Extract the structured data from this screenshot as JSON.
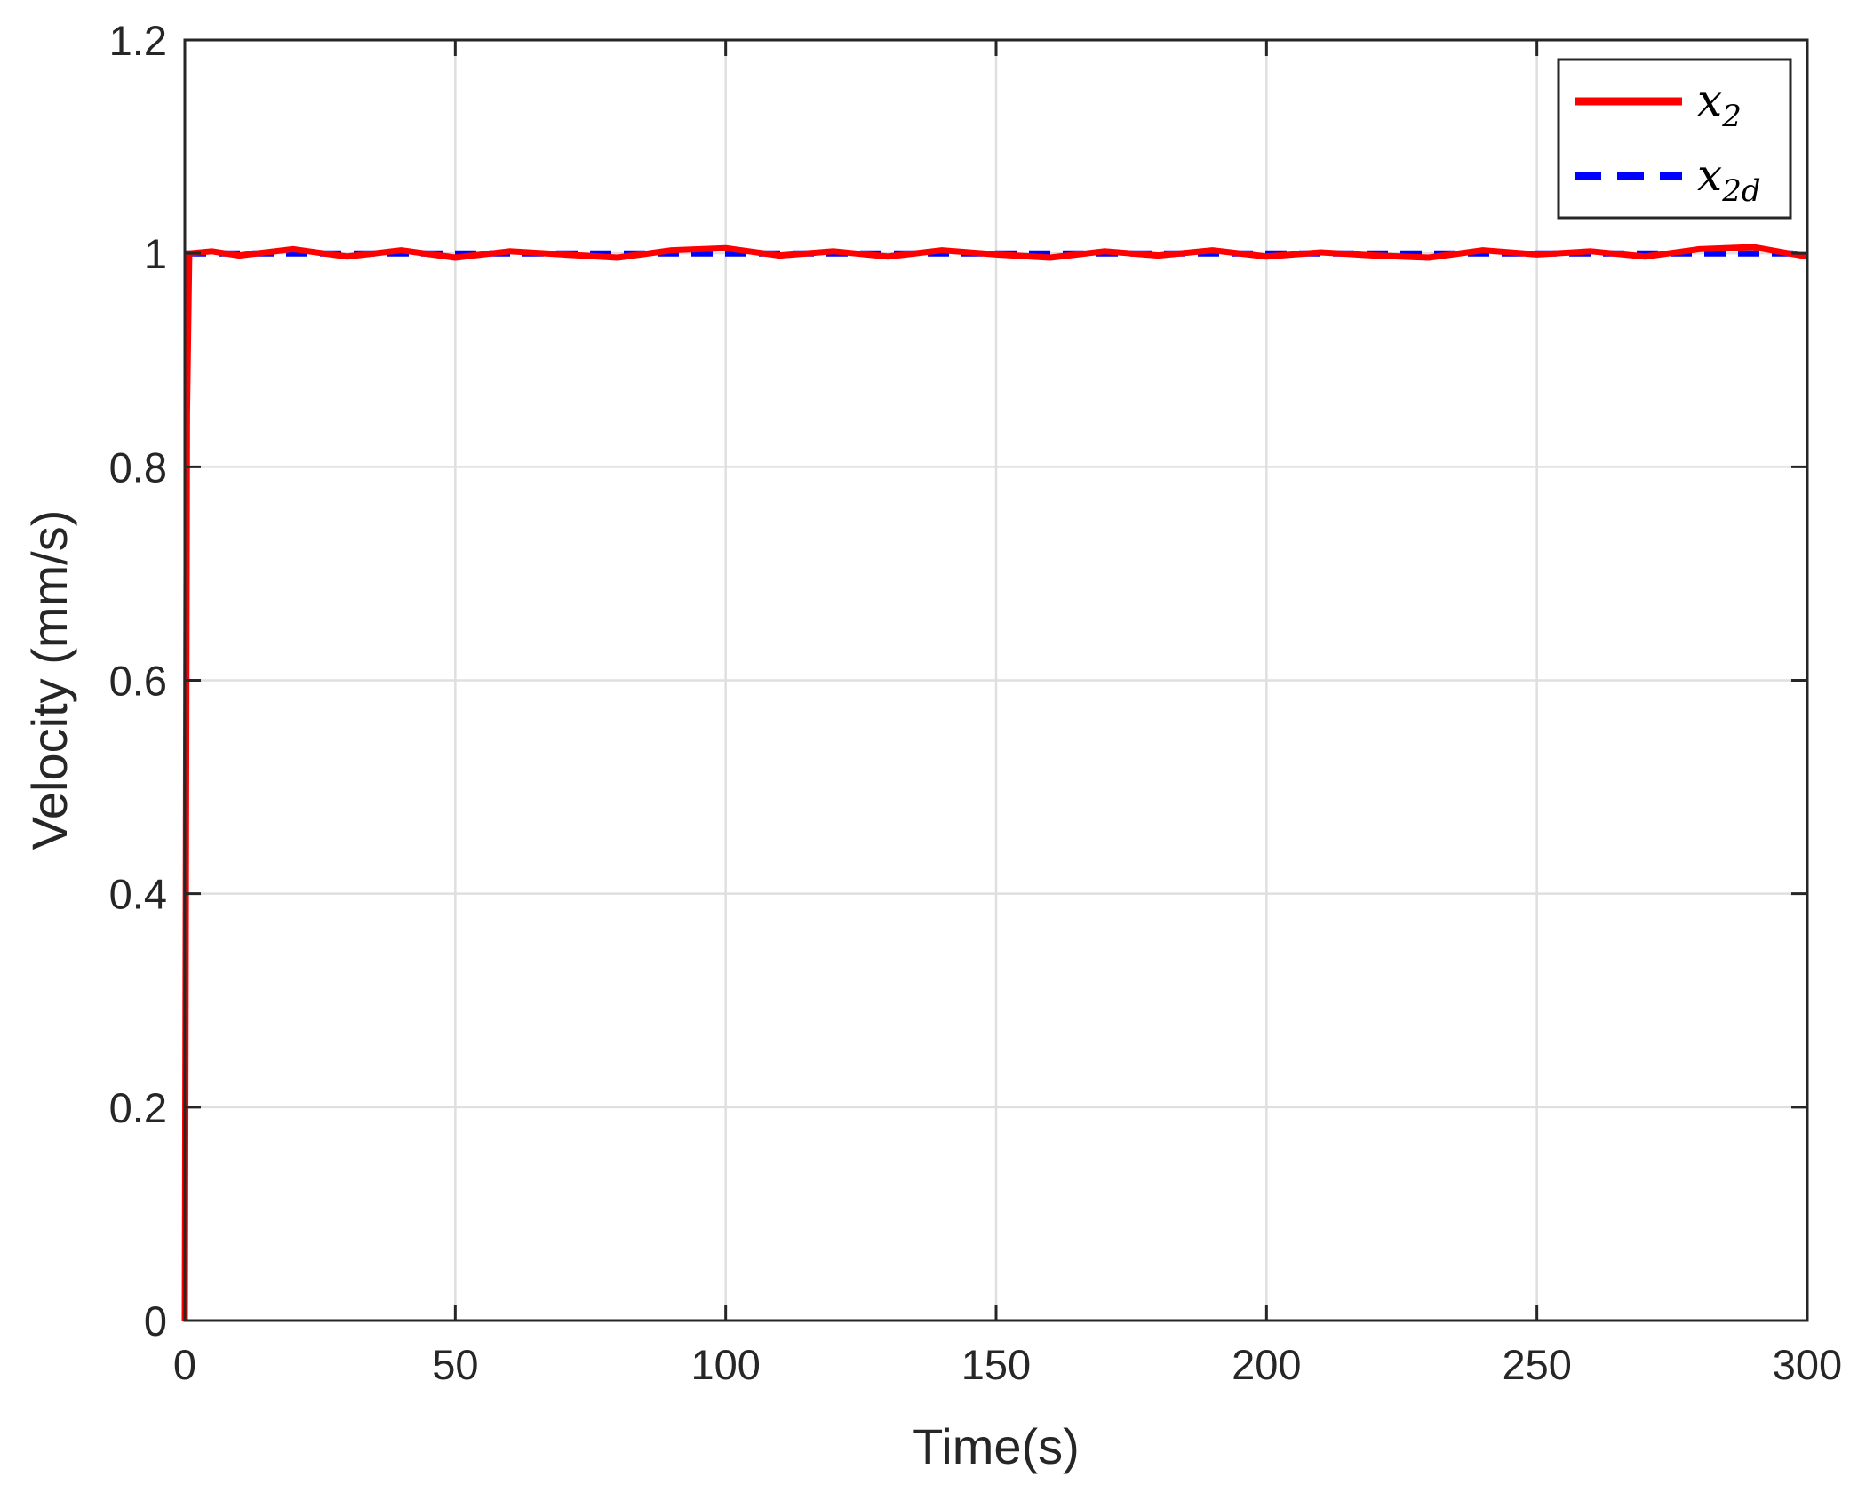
{
  "chart_data": {
    "type": "line",
    "xlabel": "Time(s)",
    "ylabel": "Velocity (mm/s)",
    "xlim": [
      0,
      300
    ],
    "ylim": [
      0,
      1.2
    ],
    "xticks": [
      0,
      50,
      100,
      150,
      200,
      250,
      300
    ],
    "yticks": [
      0,
      0.2,
      0.4,
      0.6,
      0.8,
      1,
      1.2
    ],
    "xtick_labels": [
      "0",
      "50",
      "100",
      "150",
      "200",
      "250",
      "300"
    ],
    "ytick_labels": [
      "0",
      "0.2",
      "0.4",
      "0.6",
      "0.8",
      "1",
      "1.2"
    ],
    "grid": true,
    "legend_position": "top-right",
    "series": [
      {
        "name": "x_2",
        "label_base": "x",
        "label_sub": "2",
        "color": "#ff0000",
        "style": "solid",
        "x": [
          0,
          0.4,
          0.8,
          5,
          10,
          20,
          30,
          40,
          50,
          60,
          70,
          80,
          90,
          100,
          110,
          120,
          130,
          140,
          150,
          160,
          170,
          180,
          190,
          200,
          210,
          220,
          230,
          240,
          250,
          260,
          270,
          280,
          290,
          300
        ],
        "values": [
          0,
          0.85,
          1.0,
          1.002,
          0.998,
          1.004,
          0.997,
          1.003,
          0.996,
          1.002,
          0.999,
          0.996,
          1.003,
          1.005,
          0.998,
          1.002,
          0.997,
          1.003,
          0.999,
          0.996,
          1.002,
          0.998,
          1.003,
          0.997,
          1.001,
          0.998,
          0.996,
          1.003,
          0.999,
          1.002,
          0.997,
          1.004,
          1.006,
          0.997
        ]
      },
      {
        "name": "x_2d",
        "label_base": "x",
        "label_sub": "2d",
        "color": "#0000ff",
        "style": "dashed",
        "x": [
          0,
          300
        ],
        "values": [
          1,
          1
        ]
      }
    ]
  }
}
